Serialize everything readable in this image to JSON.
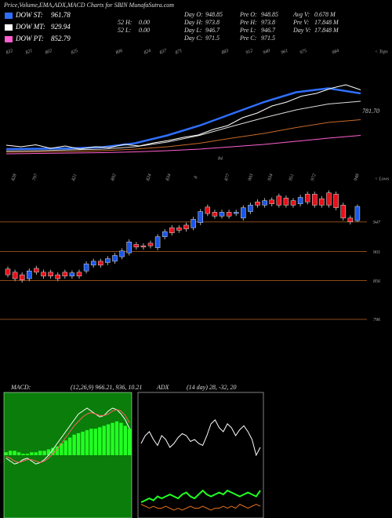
{
  "header": {
    "title": "Price,Volume,EMA,ADX,MACD Charts for SBIN  MunafaSutra.com",
    "legend": [
      {
        "name": "DOW ST:",
        "value": 961.78,
        "color": "#2f6fff"
      },
      {
        "name": "DOW MT:",
        "value": 929.94,
        "color": "#ffffff"
      },
      {
        "name": "DOW PT:",
        "value": 852.79,
        "color": "#ff5fd0"
      }
    ],
    "info": [
      [
        {
          "label": "52 H:",
          "value": "0.00"
        },
        {
          "label": "52 L:",
          "value": "0.00"
        }
      ],
      [
        {
          "label": "Day O:",
          "value": 948.85
        },
        {
          "label": "Day H:",
          "value": 973.8
        },
        {
          "label": "Day L:",
          "value": 946.7
        },
        {
          "label": "Day C:",
          "value": 971.5
        }
      ],
      [
        {
          "label": "Pre O:",
          "value": 948.85
        },
        {
          "label": "Pre H:",
          "value": 973.8
        },
        {
          "label": "Pre L:",
          "value": 946.7
        },
        {
          "label": "Pre C:",
          "value": 971.5
        }
      ],
      [
        {
          "label": "Avg V:",
          "value": "0.678 M"
        },
        {
          "label": "Pre V:",
          "value": "17.848 M"
        },
        {
          "label": "Day V:",
          "value": "17.848 M"
        }
      ]
    ]
  },
  "chart_data": [
    {
      "type": "line",
      "ylim": [
        780,
        1000
      ],
      "tops": [
        832,
        821,
        802,
        825,
        806,
        824,
        837,
        871,
        883,
        912,
        940,
        961,
        975,
        984
      ],
      "tops_label": "< Tops",
      "annotations": [
        "781.70",
        "84"
      ],
      "series": [
        {
          "name": "Price",
          "color": "#ffffff",
          "values": [
            830,
            826,
            831,
            822,
            828,
            820,
            826,
            824,
            832,
            828,
            836,
            842,
            850,
            856,
            870,
            880,
            900,
            912,
            930,
            940,
            955,
            962,
            975,
            984,
            971
          ]
        },
        {
          "name": "ST",
          "color": "#2f6fff",
          "values": [
            820,
            821,
            822,
            825,
            835,
            855,
            880,
            910,
            940,
            965,
            975,
            962
          ]
        },
        {
          "name": "MT",
          "color": "#dddddd",
          "values": [
            815,
            816,
            818,
            820,
            826,
            838,
            855,
            878,
            900,
            920,
            935,
            942
          ]
        },
        {
          "name": "LT",
          "color": "#c8692a",
          "values": [
            812,
            813,
            814,
            816,
            820,
            826,
            835,
            848,
            860,
            875,
            888,
            895
          ]
        },
        {
          "name": "PT",
          "color": "#ff5fd0",
          "values": [
            808,
            809,
            810,
            811,
            813,
            816,
            820,
            826,
            832,
            840,
            848,
            855
          ]
        }
      ]
    },
    {
      "type": "candlestick",
      "ylim": [
        707,
        999
      ],
      "yticks": [
        947,
        901,
        856,
        796
      ],
      "lows": [
        828,
        797,
        821,
        802,
        824,
        834,
        8,
        877,
        903,
        934,
        951,
        972,
        948
      ],
      "lows_label": "< Lows",
      "up_color": "#1a56e8",
      "down_color": "#e8101a",
      "grid_color": "#8b4a1a",
      "open": [
        874,
        869,
        865,
        859,
        875,
        869,
        869,
        865,
        869,
        863,
        869,
        871,
        880,
        886,
        884,
        886,
        893,
        899,
        912,
        910,
        914,
        907,
        924,
        938,
        938,
        942,
        938,
        946,
        970,
        962,
        956,
        962,
        960,
        953,
        963,
        978,
        973,
        981,
        987,
        984,
        980,
        975,
        990,
        990,
        983,
        992,
        990,
        973,
        953,
        949
      ],
      "high": [
        878,
        873,
        869,
        875,
        879,
        873,
        873,
        869,
        873,
        872,
        873,
        886,
        890,
        890,
        894,
        899,
        906,
        920,
        916,
        914,
        918,
        928,
        936,
        942,
        942,
        946,
        955,
        967,
        974,
        966,
        966,
        966,
        966,
        973,
        977,
        982,
        984,
        985,
        991,
        988,
        984,
        989,
        994,
        994,
        987,
        996,
        994,
        977,
        957,
        974
      ],
      "low": [
        861,
        855,
        853,
        855,
        865,
        859,
        859,
        855,
        859,
        859,
        859,
        867,
        876,
        876,
        880,
        882,
        889,
        895,
        904,
        904,
        906,
        903,
        920,
        926,
        930,
        932,
        934,
        942,
        956,
        952,
        952,
        952,
        956,
        949,
        959,
        969,
        969,
        971,
        969,
        969,
        969,
        971,
        974,
        969,
        969,
        969,
        965,
        949,
        943,
        947
      ],
      "close": [
        865,
        859,
        857,
        871,
        869,
        863,
        863,
        859,
        863,
        868,
        863,
        882,
        886,
        880,
        890,
        895,
        902,
        916,
        908,
        908,
        910,
        924,
        932,
        930,
        934,
        936,
        951,
        963,
        960,
        956,
        962,
        956,
        962,
        969,
        973,
        973,
        980,
        975,
        973,
        973,
        973,
        985,
        978,
        973,
        973,
        973,
        969,
        953,
        947,
        971
      ]
    },
    {
      "type": "macd",
      "label": "MACD:",
      "params": "(12,26,9) 966.21, 936, 10.21",
      "ylim": [
        -40,
        40
      ],
      "background": "#0a7d0a",
      "bar_color": "#22ff22",
      "histogram": [
        2,
        3,
        3,
        2,
        1,
        1,
        2,
        2,
        3,
        3,
        4,
        5,
        6,
        8,
        10,
        12,
        14,
        15,
        16,
        17,
        18,
        18,
        19,
        20,
        21,
        22,
        23,
        22,
        20,
        18
      ],
      "series": [
        {
          "name": "MACD",
          "color": "#ffffff",
          "values": [
            -2,
            -4,
            -6,
            -5,
            -3,
            -2,
            -4,
            -6,
            -5,
            -3,
            0,
            4,
            8,
            12,
            16,
            20,
            24,
            28,
            30,
            32,
            30,
            28,
            26,
            27,
            30,
            32,
            31,
            28,
            24,
            18
          ]
        },
        {
          "name": "Signal",
          "color": "#ff6060",
          "values": [
            -1,
            -2,
            -4,
            -5,
            -4,
            -3,
            -3,
            -4,
            -5,
            -4,
            -2,
            1,
            4,
            8,
            12,
            16,
            20,
            23,
            26,
            28,
            29,
            28,
            27,
            27,
            28,
            30,
            31,
            30,
            27,
            22
          ]
        }
      ]
    },
    {
      "type": "adx",
      "label": "ADX",
      "params": "(14 day) 28, -32, 20",
      "ylim": [
        0,
        60
      ],
      "background": "#000000",
      "series": [
        {
          "name": "ADX",
          "color": "#ffffff",
          "values": [
            36,
            40,
            42,
            38,
            35,
            40,
            38,
            34,
            36,
            39,
            41,
            40,
            37,
            38,
            36,
            35,
            40,
            46,
            48,
            44,
            42,
            46,
            44,
            40,
            43,
            45,
            42,
            38,
            30,
            34
          ]
        },
        {
          "name": "+DI",
          "color": "#22ff22",
          "values": [
            6,
            7,
            8,
            7,
            9,
            8,
            9,
            10,
            9,
            8,
            10,
            11,
            9,
            8,
            10,
            12,
            10,
            9,
            10,
            11,
            10,
            12,
            11,
            10,
            9,
            10,
            11,
            10,
            9,
            12
          ]
        },
        {
          "name": "-DI",
          "color": "#e07020",
          "values": [
            5,
            4,
            3,
            4,
            3,
            3,
            4,
            3,
            2,
            3,
            2,
            3,
            4,
            3,
            3,
            4,
            3,
            2,
            3,
            3,
            4,
            3,
            4,
            3,
            5,
            4,
            3,
            4,
            5,
            4
          ]
        }
      ]
    }
  ]
}
